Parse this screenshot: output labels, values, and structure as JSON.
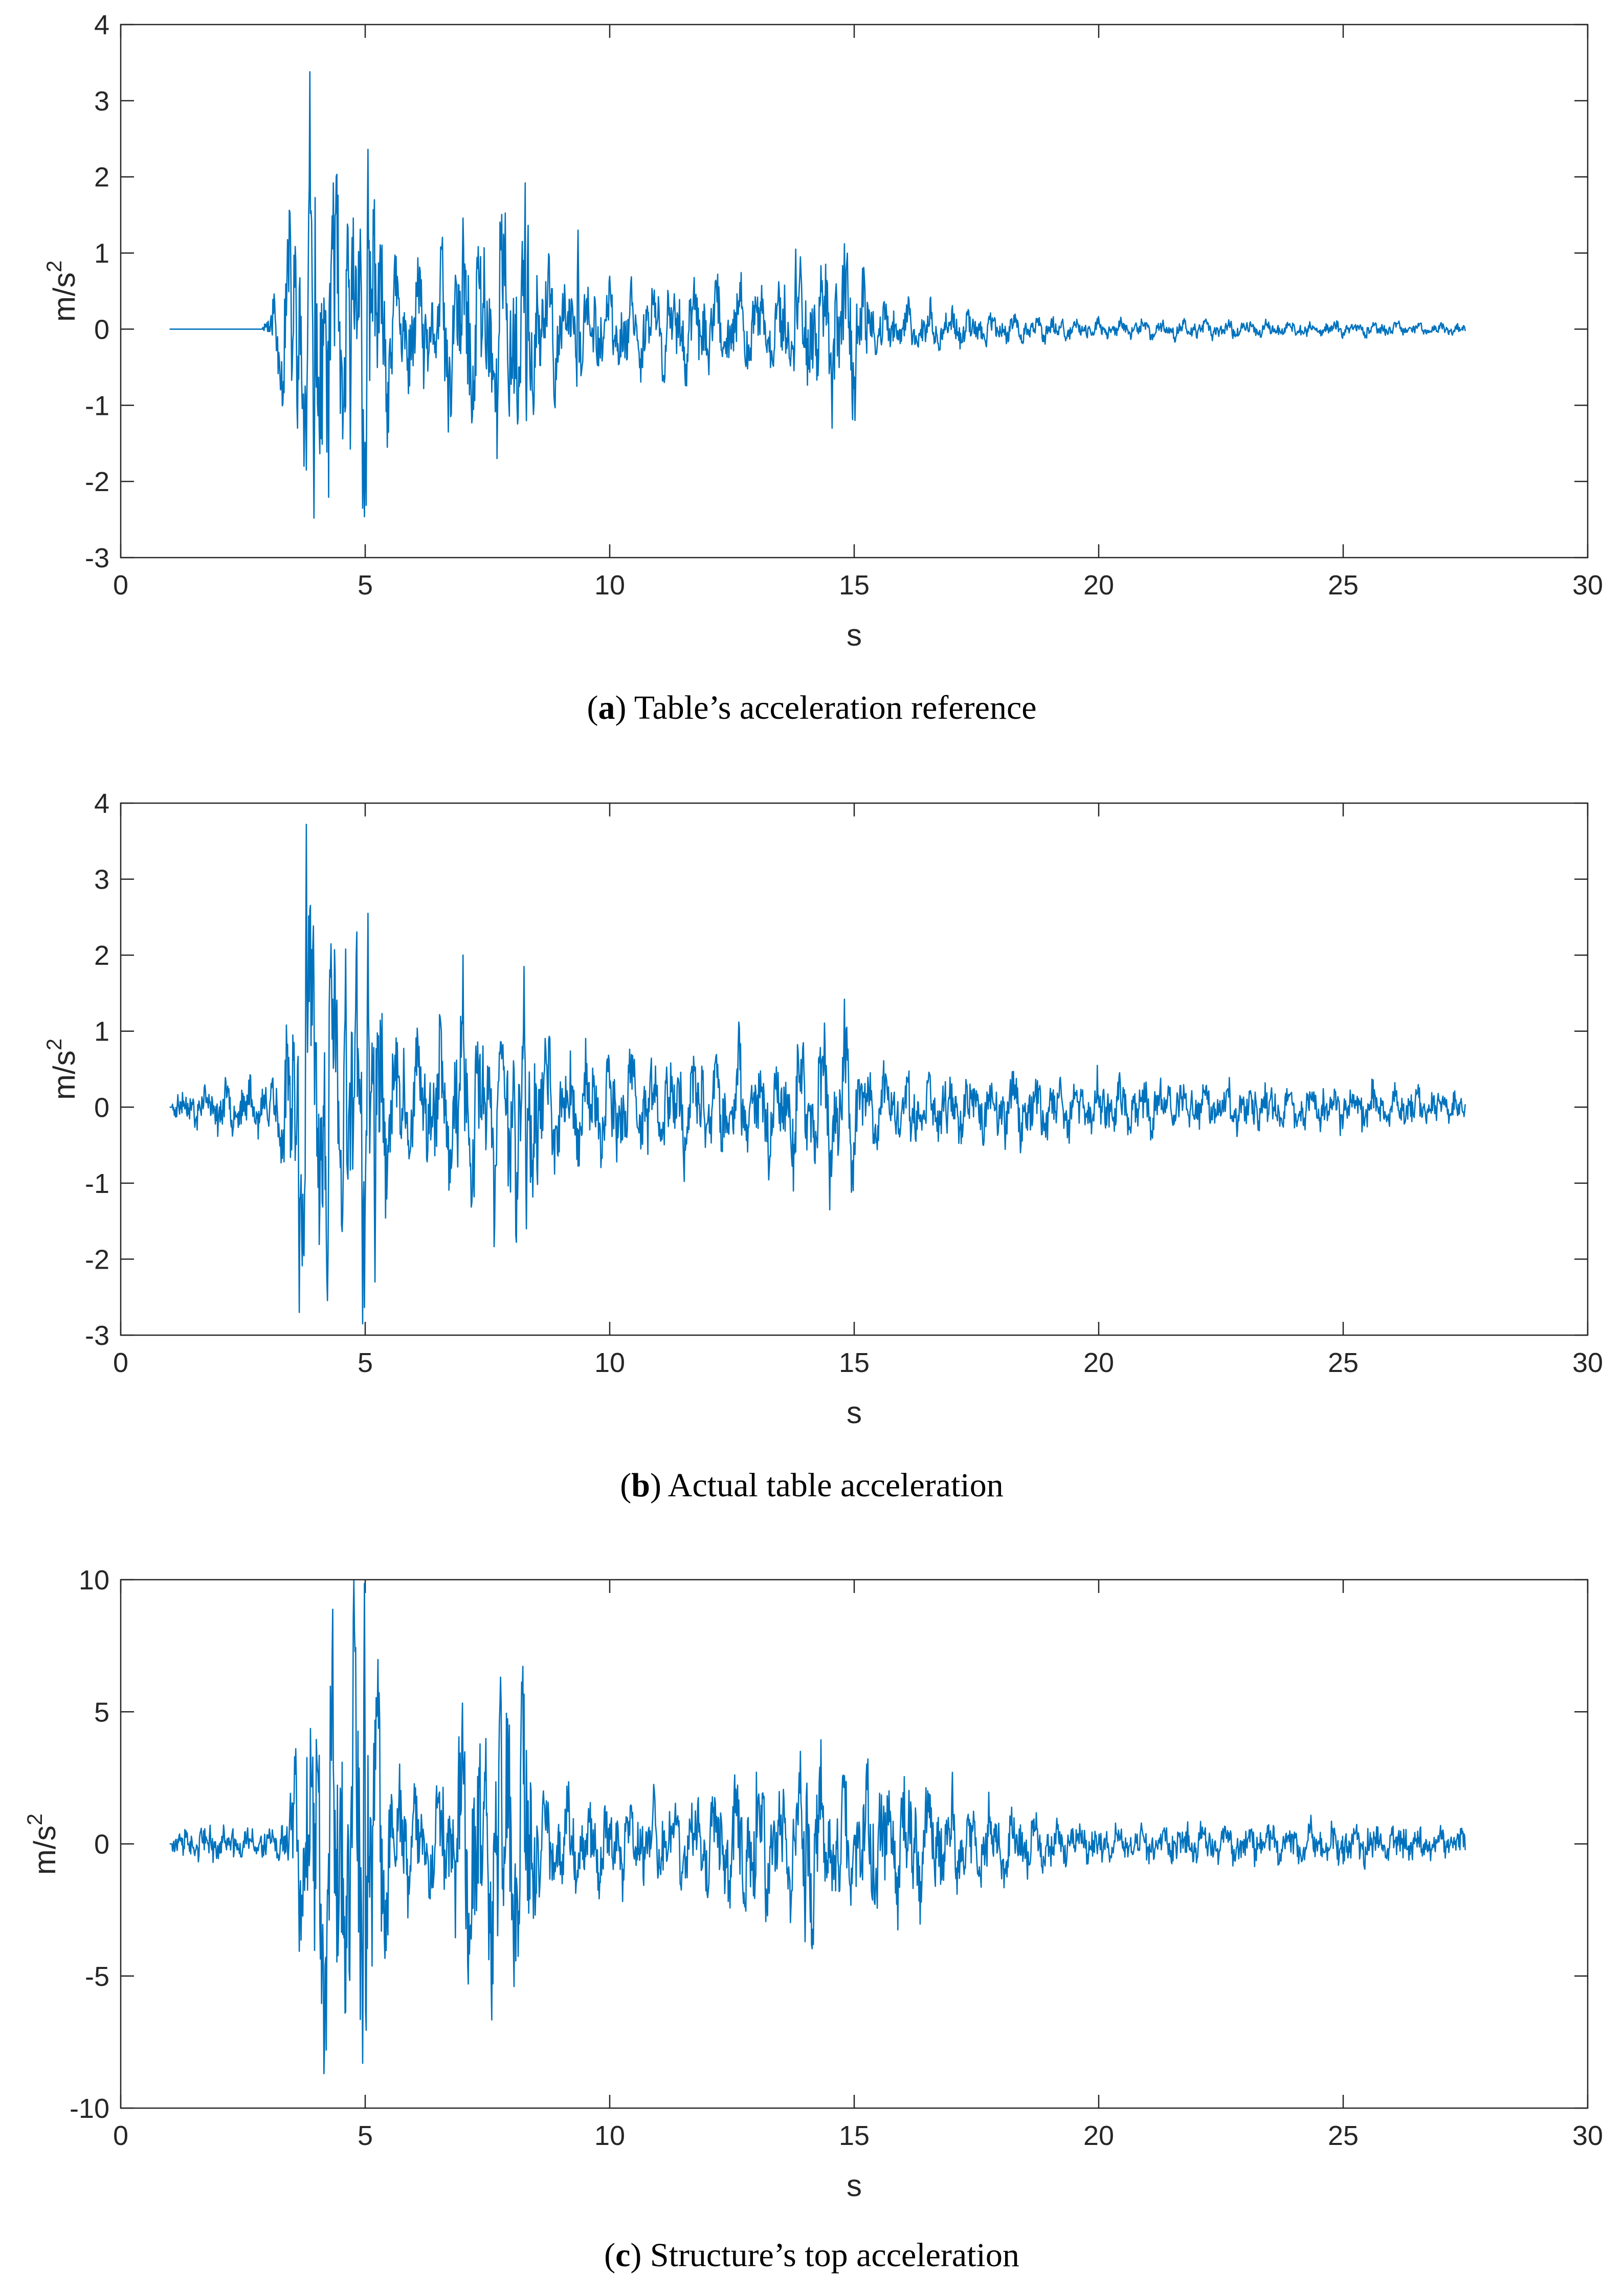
{
  "chart_data": [
    {
      "type": "line",
      "id": "a",
      "caption_letter": "a",
      "caption_text": "Table’s acceleration reference",
      "xlabel": "s",
      "ylabel_base": "m/s",
      "ylabel_sup": "2",
      "xlim": [
        0,
        30
      ],
      "ylim": [
        -3,
        4
      ],
      "x_ticks": [
        "0",
        "5",
        "10",
        "15",
        "20",
        "25",
        "30"
      ],
      "y_ticks": [
        "-3",
        "-2",
        "-1",
        "0",
        "1",
        "2",
        "3",
        "4"
      ],
      "x_tick_values": [
        0,
        5,
        10,
        15,
        20,
        25,
        30
      ],
      "y_tick_values": [
        -3,
        -2,
        -1,
        0,
        1,
        2,
        3,
        4
      ],
      "line_color": "#0072BD",
      "series": {
        "t0": 1.0,
        "t1": 27.5,
        "quiet_end": 2.9,
        "seed": 11,
        "noise": 0.02,
        "env": [
          [
            1.0,
            0
          ],
          [
            2.9,
            0.02
          ],
          [
            3.2,
            0.6
          ],
          [
            3.6,
            1.8
          ],
          [
            3.9,
            2.4
          ],
          [
            4.6,
            1.9
          ],
          [
            5.1,
            2.2
          ],
          [
            5.6,
            0.8
          ],
          [
            6.5,
            0.8
          ],
          [
            7.0,
            1.3
          ],
          [
            8.2,
            1.5
          ],
          [
            9.0,
            0.6
          ],
          [
            11.0,
            0.55
          ],
          [
            13.0,
            0.6
          ],
          [
            14.0,
            0.8
          ],
          [
            15.0,
            1.0
          ],
          [
            15.5,
            0.35
          ],
          [
            17.0,
            0.25
          ],
          [
            19.5,
            0.12
          ],
          [
            25.0,
            0.1
          ],
          [
            27.5,
            0.06
          ]
        ],
        "spikes": [
          [
            3.87,
            3.38
          ],
          [
            3.95,
            -2.48
          ],
          [
            3.8,
            -1.85
          ],
          [
            4.35,
            1.92
          ],
          [
            4.95,
            -2.35
          ],
          [
            5.06,
            2.36
          ],
          [
            5.45,
            -1.55
          ],
          [
            6.7,
            -1.35
          ],
          [
            8.27,
            1.92
          ],
          [
            8.3,
            -1.2
          ],
          [
            9.35,
            1.3
          ],
          [
            13.8,
            1.05
          ],
          [
            14.55,
            -1.3
          ],
          [
            14.8,
            1.12
          ]
        ]
      }
    },
    {
      "type": "line",
      "id": "b",
      "caption_letter": "b",
      "caption_text": "Actual table acceleration",
      "xlabel": "s",
      "ylabel_base": "m/s",
      "ylabel_sup": "2",
      "xlim": [
        0,
        30
      ],
      "ylim": [
        -3,
        4
      ],
      "x_ticks": [
        "0",
        "5",
        "10",
        "15",
        "20",
        "25",
        "30"
      ],
      "y_ticks": [
        "-3",
        "-2",
        "-1",
        "0",
        "1",
        "2",
        "3",
        "4"
      ],
      "x_tick_values": [
        0,
        5,
        10,
        15,
        20,
        25,
        30
      ],
      "y_tick_values": [
        -3,
        -2,
        -1,
        0,
        1,
        2,
        3,
        4
      ],
      "line_color": "#0072BD",
      "series": {
        "t0": 1.0,
        "t1": 27.5,
        "quiet_end": 1.05,
        "seed": 23,
        "noise": 0.12,
        "env": [
          [
            1.0,
            0.05
          ],
          [
            1.5,
            0.22
          ],
          [
            3.0,
            0.3
          ],
          [
            3.4,
            1.0
          ],
          [
            3.7,
            2.0
          ],
          [
            3.9,
            2.5
          ],
          [
            4.6,
            1.9
          ],
          [
            5.0,
            2.3
          ],
          [
            5.5,
            0.9
          ],
          [
            6.5,
            0.8
          ],
          [
            7.0,
            1.3
          ],
          [
            8.2,
            1.4
          ],
          [
            9.0,
            0.7
          ],
          [
            11.0,
            0.6
          ],
          [
            13.0,
            0.7
          ],
          [
            14.0,
            0.85
          ],
          [
            15.0,
            1.0
          ],
          [
            15.5,
            0.5
          ],
          [
            17.0,
            0.4
          ],
          [
            18.0,
            0.45
          ],
          [
            19.5,
            0.3
          ],
          [
            25.0,
            0.25
          ],
          [
            27.5,
            0.15
          ]
        ],
        "spikes": [
          [
            3.8,
            3.72
          ],
          [
            3.65,
            -2.7
          ],
          [
            4.95,
            -2.85
          ],
          [
            5.05,
            2.55
          ],
          [
            5.2,
            -2.3
          ],
          [
            4.6,
            2.08
          ],
          [
            7.0,
            2.0
          ],
          [
            8.25,
            1.85
          ],
          [
            8.3,
            -1.6
          ],
          [
            14.8,
            1.42
          ],
          [
            14.5,
            -1.35
          ]
        ]
      }
    },
    {
      "type": "line",
      "id": "c",
      "caption_letter": "c",
      "caption_text": "Structure’s top acceleration",
      "xlabel": "s",
      "ylabel_base": "m/s",
      "ylabel_sup": "2",
      "xlim": [
        0,
        30
      ],
      "ylim": [
        -10,
        10
      ],
      "x_ticks": [
        "0",
        "5",
        "10",
        "15",
        "20",
        "25",
        "30"
      ],
      "y_ticks": [
        "-10",
        "-5",
        "0",
        "5",
        "10"
      ],
      "x_tick_values": [
        0,
        5,
        10,
        15,
        20,
        25,
        30
      ],
      "y_tick_values": [
        -10,
        -5,
        0,
        5,
        10
      ],
      "line_color": "#0072BD",
      "series": {
        "t0": 1.0,
        "t1": 27.5,
        "quiet_end": 1.05,
        "seed": 37,
        "noise": 0.35,
        "env": [
          [
            1.0,
            0.1
          ],
          [
            1.5,
            0.45
          ],
          [
            3.2,
            0.5
          ],
          [
            3.6,
            3.5
          ],
          [
            4.0,
            6.2
          ],
          [
            4.6,
            6.5
          ],
          [
            5.0,
            8.5
          ],
          [
            5.3,
            5.0
          ],
          [
            5.8,
            2.0
          ],
          [
            6.5,
            2.0
          ],
          [
            7.0,
            4.5
          ],
          [
            7.5,
            5.5
          ],
          [
            8.3,
            5.8
          ],
          [
            8.6,
            2.0
          ],
          [
            10.0,
            1.5
          ],
          [
            11.5,
            1.6
          ],
          [
            12.5,
            2.2
          ],
          [
            13.0,
            3.0
          ],
          [
            13.5,
            2.0
          ],
          [
            14.0,
            3.5
          ],
          [
            14.5,
            2.5
          ],
          [
            16.0,
            2.5
          ],
          [
            17.0,
            1.8
          ],
          [
            19.0,
            0.9
          ],
          [
            20.0,
            0.5
          ],
          [
            22.0,
            0.5
          ],
          [
            25.0,
            0.6
          ],
          [
            27.5,
            0.4
          ]
        ],
        "spikes": [
          [
            4.98,
            9.85
          ],
          [
            4.95,
            -8.3
          ],
          [
            4.2,
            -7.8
          ],
          [
            13.9,
            3.5
          ],
          [
            14.0,
            -3.7
          ]
        ]
      }
    }
  ]
}
